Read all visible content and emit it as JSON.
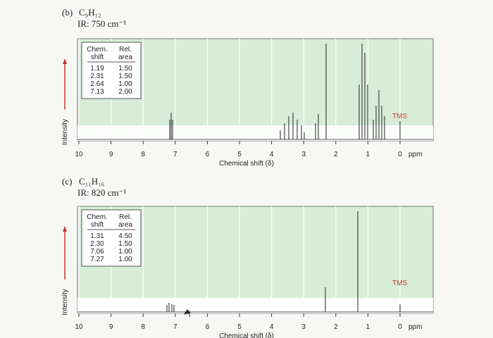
{
  "problems": [
    {
      "label": "(b)",
      "formula": "C₉H₁₂",
      "ir": "IR: 750 cm⁻¹",
      "table": {
        "header": [
          [
            "Chem.",
            "shift"
          ],
          [
            "Rel.",
            "area"
          ]
        ],
        "rows": [
          [
            "1.19",
            "1.50"
          ],
          [
            "2.31",
            "1.50"
          ],
          [
            "2.64",
            "1.00"
          ],
          [
            "7.13",
            "2.00"
          ]
        ]
      },
      "ylabel": "Intensity",
      "ticks": [
        "10",
        "9",
        "8",
        "7",
        "6",
        "5",
        "4",
        "3",
        "2",
        "1",
        "0"
      ],
      "unit": "ppm",
      "xlabel": "Chemical shift (δ)",
      "tms": "TMS"
    },
    {
      "label": "(c)",
      "formula": "C₁₁H₁₆",
      "ir": "IR: 820 cm⁻¹",
      "table": {
        "header": [
          [
            "Chem.",
            "shift"
          ],
          [
            "Rel.",
            "area"
          ]
        ],
        "rows": [
          [
            "1.31",
            "4.50"
          ],
          [
            "2.30",
            "1.50"
          ],
          [
            "7.06",
            "1.00"
          ],
          [
            "7.27",
            "1.00"
          ]
        ]
      },
      "ylabel": "Intensity",
      "ticks": [
        "10",
        "9",
        "8",
        "7",
        "6",
        "5",
        "4",
        "3",
        "2",
        "1",
        "0"
      ],
      "unit": "ppm",
      "xlabel": "Chemical shift (δ)",
      "tms": "TMS"
    }
  ]
}
